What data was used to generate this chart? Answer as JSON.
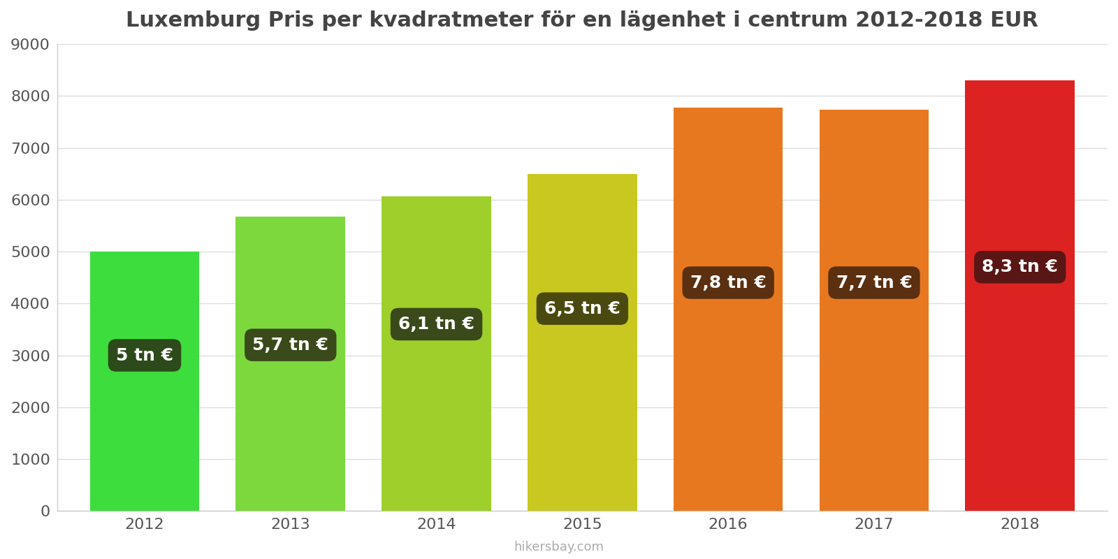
{
  "title": "Luxemburg Pris per kvadratmeter för en lägenhet i centrum 2012-2018 EUR",
  "years": [
    2012,
    2013,
    2014,
    2015,
    2016,
    2017,
    2018
  ],
  "values": [
    5000,
    5680,
    6060,
    6500,
    7780,
    7730,
    8300
  ],
  "bar_colors": [
    "#3ddd3d",
    "#7dd83d",
    "#9ecf2a",
    "#c8c820",
    "#e87820",
    "#e87820",
    "#dd2222"
  ],
  "label_texts": [
    "5 tn €",
    "5,7 tn €",
    "6,1 tn €",
    "6,5 tn €",
    "7,8 tn €",
    "7,7 tn €",
    "8,3 tn €"
  ],
  "label_bg_colors": [
    "#2d4a1a",
    "#3a4a1a",
    "#3a4a1a",
    "#4a4a10",
    "#5a3010",
    "#5a3010",
    "#5a1515"
  ],
  "label_y_positions": [
    3000,
    3200,
    3600,
    3900,
    4400,
    4400,
    4700
  ],
  "ylim": [
    0,
    9000
  ],
  "yticks": [
    0,
    1000,
    2000,
    3000,
    4000,
    5000,
    6000,
    7000,
    8000,
    9000
  ],
  "watermark": "hikersbay.com",
  "background_color": "#ffffff",
  "grid_color": "#dddddd",
  "title_fontsize": 22,
  "tick_fontsize": 16,
  "label_fontsize": 18,
  "bar_width": 0.75
}
